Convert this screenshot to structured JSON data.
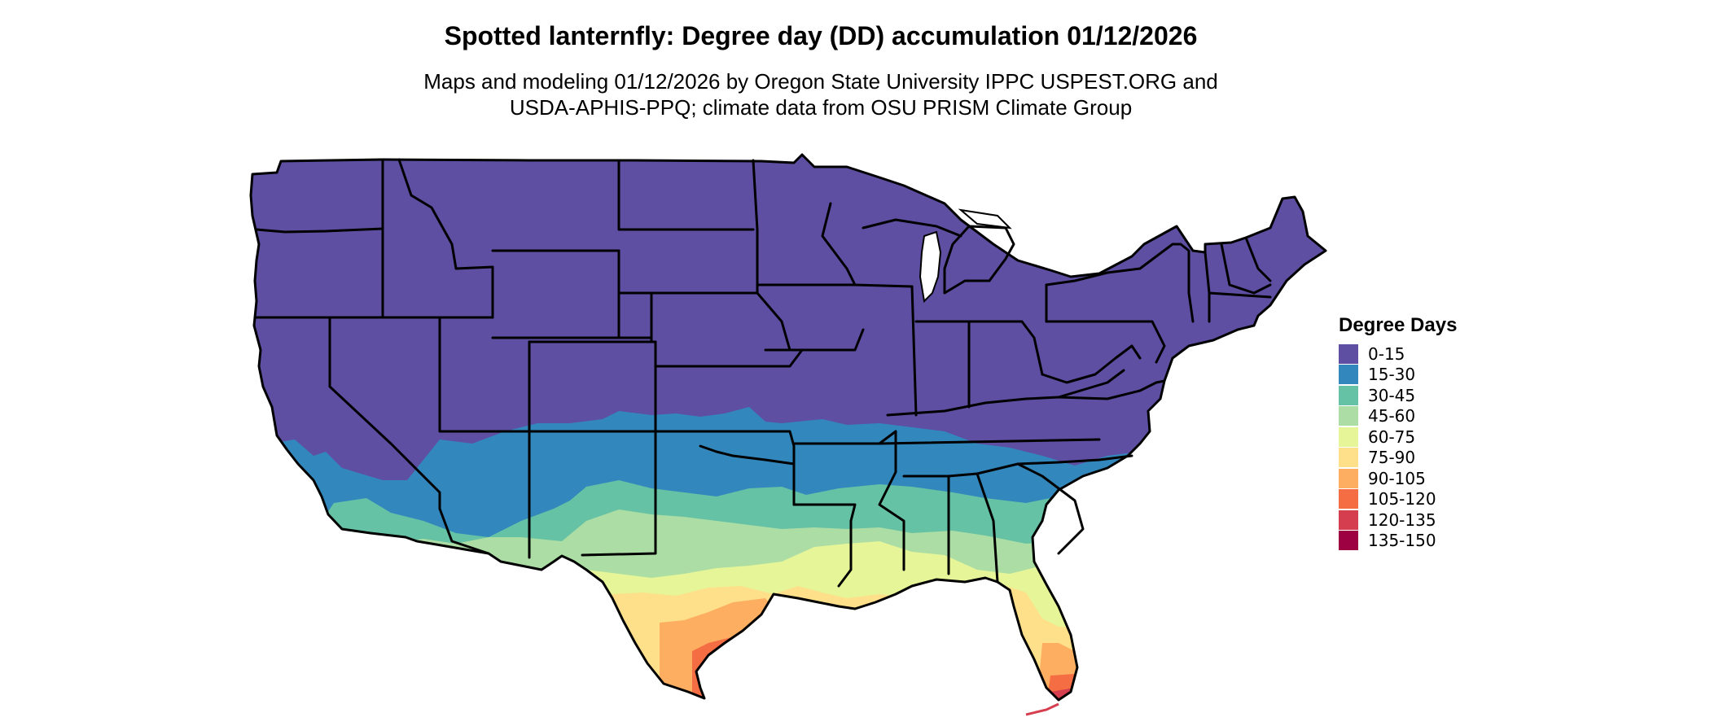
{
  "map": {
    "title": "Spotted lanternfly: Degree day (DD) accumulation 01/12/2026",
    "subtitle_line1": "Maps and modeling 01/12/2026 by Oregon State University IPPC USPEST.ORG and",
    "subtitle_line2": "USDA-APHIS-PPQ; climate data from OSU PRISM Climate Group",
    "region": "Contiguous United States",
    "layers": [
      "degree-day accumulation raster",
      "state boundaries"
    ]
  },
  "legend": {
    "title": "Degree Days",
    "items": [
      {
        "label": "0-15",
        "color": "#5E4FA2"
      },
      {
        "label": "15-30",
        "color": "#3288BD"
      },
      {
        "label": "30-45",
        "color": "#66C2A5"
      },
      {
        "label": "45-60",
        "color": "#ABDDA4"
      },
      {
        "label": "60-75",
        "color": "#E6F598"
      },
      {
        "label": "75-90",
        "color": "#FEE08B"
      },
      {
        "label": "90-105",
        "color": "#FDAE61"
      },
      {
        "label": "105-120",
        "color": "#F46D43"
      },
      {
        "label": "120-135",
        "color": "#D53E4F"
      },
      {
        "label": "135-150",
        "color": "#9E0142"
      }
    ]
  }
}
